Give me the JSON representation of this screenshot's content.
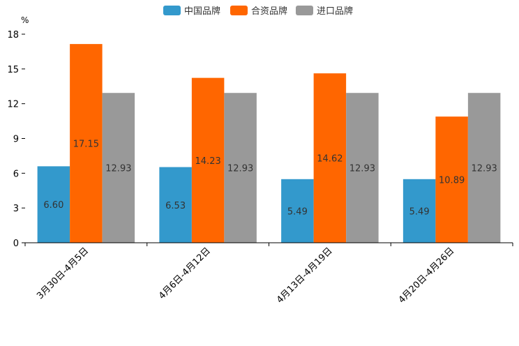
{
  "chart_data": {
    "type": "bar",
    "y_unit": "%",
    "categories": [
      "3月30日-4月5日",
      "4月6日-4月12日",
      "4月13日-4月19日",
      "4月20日-4月26日"
    ],
    "series": [
      {
        "name": "中国品牌",
        "color": "#3399cc",
        "values": [
          6.6,
          6.53,
          5.49,
          5.49
        ],
        "labels": [
          "6.60",
          "6.53",
          "5.49",
          "5.49"
        ]
      },
      {
        "name": "合资品牌",
        "color": "#ff6600",
        "values": [
          17.15,
          14.23,
          14.62,
          10.89
        ],
        "labels": [
          "17.15",
          "14.23",
          "14.62",
          "10.89"
        ]
      },
      {
        "name": "进口品牌",
        "color": "#999999",
        "values": [
          12.93,
          12.93,
          12.93,
          12.93
        ],
        "labels": [
          "12.93",
          "12.93",
          "12.93",
          "12.93"
        ]
      }
    ],
    "ylim": [
      0,
      18
    ],
    "yticks": [
      "0",
      "3",
      "6",
      "9",
      "12",
      "15",
      "18"
    ],
    "legend_position": "top-center",
    "grid": false
  }
}
